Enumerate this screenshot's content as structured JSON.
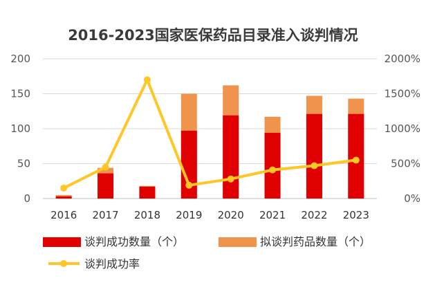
{
  "chart_data": {
    "type": "bar",
    "title": "2016-2023国家医保药品目录准入谈判情况",
    "categories": [
      "2016",
      "2017",
      "2018",
      "2019",
      "2020",
      "2021",
      "2022",
      "2023"
    ],
    "left_axis": {
      "range": [
        0,
        200
      ],
      "ticks": [
        "0",
        "50",
        "100",
        "150",
        "200"
      ]
    },
    "right_axis": {
      "range": [
        0,
        2000
      ],
      "ticks": [
        "0%",
        "500%",
        "1000%",
        "1500%",
        "2000%"
      ],
      "unit": "%"
    },
    "series": [
      {
        "name": "谈判成功数量（个）",
        "kind": "bar",
        "axis": "left",
        "color": "#e10000",
        "values": [
          3,
          36,
          17,
          97,
          119,
          94,
          121,
          121
        ]
      },
      {
        "name": "拟谈判药品数量（个）",
        "kind": "bar",
        "axis": "left",
        "color": "#f0944d",
        "values": [
          5,
          44,
          18,
          150,
          162,
          117,
          147,
          143
        ]
      },
      {
        "name": "谈判成功率",
        "kind": "line",
        "axis": "right",
        "color": "#ffc726",
        "values": [
          150,
          450,
          1700,
          190,
          280,
          410,
          470,
          550
        ]
      }
    ],
    "grid": true,
    "legend_position": "bottom"
  }
}
